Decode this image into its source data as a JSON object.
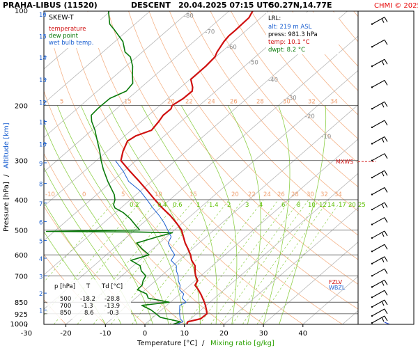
{
  "header": {
    "station": "PRAHA-LIBUS (11520)",
    "mode": "DESCENT",
    "datetime": "20.04.2025 07:15 UTC",
    "coords": "50.27N,14.77E",
    "copyright": "CHMI © 2025"
  },
  "colors": {
    "temperature": "#d01010",
    "dewpoint": "#0a7a0a",
    "wetbulb": "#1a5fd0",
    "isotherm": "#b8b8b8",
    "dry_adiabat": "#f5b48a",
    "moist_adiabat": "#8fd04a",
    "isobar": "#000000",
    "brand_red": "#e60000"
  },
  "legend": {
    "title": "SKEW-T",
    "temperature": "temperature",
    "dewpoint": "dew point",
    "wetbulb": "wet bulb temp."
  },
  "lrl": {
    "title": "LRL:",
    "alt": "alt: 219 m ASL",
    "press": "press: 981.3 hPa",
    "temp": "temp: 10.1 °C",
    "dwpt": "dwpt: 8.2 °C"
  },
  "table": {
    "headers": [
      "p [hPa]",
      "T",
      "Td [°C]"
    ],
    "rows": [
      [
        "500",
        "-18.2",
        "-28.8"
      ],
      [
        "700",
        "-1.3",
        "-13.9"
      ],
      [
        "850",
        "8.6",
        "-0.3"
      ]
    ]
  },
  "markers": {
    "mxws": "MXWS",
    "fzlv": "FZLV",
    "wbzl": "WBZL"
  },
  "axes": {
    "xlabel_temp": "Temperature [°C]",
    "xlabel_sep": "/",
    "xlabel_mix": "Mixing ratio [g/kg]",
    "ylabel_press": "Pressure [hPa]",
    "ylabel_sep": "/",
    "ylabel_alt": "Altitude [km]"
  },
  "chart_data": {
    "type": "line",
    "subtype": "skew-t log-p",
    "x_ticks": [
      -30,
      -20,
      -10,
      0,
      10,
      20,
      30,
      40
    ],
    "pressure_ticks": [
      100,
      200,
      300,
      400,
      500,
      600,
      700,
      850,
      925,
      1000
    ],
    "altitude_ticks_km": [
      1,
      2,
      3,
      4,
      5,
      6,
      7,
      8,
      9,
      10,
      11,
      12,
      13,
      14,
      15,
      16
    ],
    "isotherm_labels": [
      -80,
      -70,
      -60,
      -50,
      -40,
      -30,
      -20,
      -10
    ],
    "mixing_ratio_labels": [
      "0.2",
      "0.4",
      "0.6",
      "1",
      "1.4",
      "2",
      "3",
      "4",
      "6",
      "8",
      "10",
      "12",
      "14",
      "17",
      "20",
      "25"
    ],
    "dry_adiabat_labels_200": [
      "5",
      "15",
      "20",
      "22",
      "24",
      "26",
      "28",
      "30",
      "32",
      "34"
    ],
    "dry_adiabat_labels_400": [
      "-10",
      "0",
      "5",
      "10",
      "15",
      "20",
      "22",
      "24",
      "26",
      "28",
      "30",
      "32",
      "34"
    ],
    "series": [
      {
        "name": "temperature",
        "pressure": [
          1000,
          981,
          960,
          925,
          900,
          870,
          850,
          825,
          800,
          775,
          750,
          725,
          700,
          675,
          650,
          625,
          600,
          575,
          550,
          525,
          500,
          475,
          450,
          425,
          400,
          375,
          350,
          325,
          300,
          280,
          260,
          250,
          240,
          225,
          215,
          205,
          200,
          190,
          180,
          175,
          165,
          160,
          150,
          140,
          135,
          125,
          120,
          115,
          110,
          105,
          100
        ],
        "temp": [
          10.6,
          10.1,
          12.5,
          12.6,
          11.4,
          9.8,
          8.6,
          7.0,
          5.3,
          3.4,
          1.3,
          0.6,
          -1.3,
          -2.9,
          -4.4,
          -6.8,
          -8.7,
          -11.0,
          -13.5,
          -15.8,
          -18.2,
          -21.5,
          -25.2,
          -29.5,
          -33.8,
          -38.2,
          -43.0,
          -48.3,
          -53.8,
          -56.0,
          -57.8,
          -57.2,
          -54.9,
          -55.6,
          -56.3,
          -56.2,
          -56.9,
          -56.1,
          -56.0,
          -57.0,
          -59.8,
          -59.8,
          -59.8,
          -60.2,
          -61.1,
          -62.4,
          -62.8,
          -62.8,
          -62.9,
          -63.0,
          -64.0
        ]
      },
      {
        "name": "dew point",
        "pressure": [
          1000,
          981,
          950,
          925,
          900,
          870,
          850,
          825,
          800,
          775,
          750,
          725,
          700,
          675,
          650,
          625,
          600,
          575,
          550,
          525,
          510,
          507,
          505,
          500,
          480,
          460,
          440,
          425,
          415,
          400,
          385,
          350,
          320,
          300,
          280,
          250,
          240,
          225,
          215,
          205,
          200,
          190,
          180,
          170,
          160,
          150,
          140,
          135,
          125,
          115,
          110,
          100
        ],
        "temp": [
          7.1,
          8.2,
          1.9,
          -0.3,
          -2.6,
          -6.3,
          -0.3,
          -6.8,
          -8.4,
          -12.0,
          -12.1,
          -13.2,
          -13.9,
          -16.5,
          -18.3,
          -22.2,
          -19.2,
          -22.6,
          -25.8,
          -22.3,
          -19.7,
          -28.9,
          -52.0,
          -28.8,
          -31.6,
          -34.5,
          -38.0,
          -41.5,
          -42.8,
          -43.9,
          -45.6,
          -51.0,
          -55.7,
          -58.8,
          -61.9,
          -67.3,
          -69.2,
          -72.6,
          -74.5,
          -74.8,
          -74.8,
          -74.7,
          -72.7,
          -73.3,
          -75.8,
          -78.3,
          -81.6,
          -84.4,
          -88.0,
          -93.4,
          -96.4,
          -100.5
        ]
      },
      {
        "name": "wet bulb temp.",
        "pressure": [
          1000,
          981,
          960,
          925,
          900,
          870,
          850,
          825,
          800,
          775,
          750,
          725,
          700,
          675,
          650,
          625,
          600,
          575,
          550,
          525,
          500,
          475,
          450,
          425,
          400,
          375,
          350,
          325,
          300
        ],
        "temp": [
          8.0,
          8.9,
          7.3,
          5.7,
          4.6,
          3.3,
          4.0,
          1.8,
          1.0,
          -1.3,
          -2.5,
          -4.3,
          -5.7,
          -7.6,
          -9.1,
          -12.0,
          -12.7,
          -15.3,
          -17.8,
          -18.9,
          -21.7,
          -24.6,
          -28.0,
          -31.9,
          -35.8,
          -40.1,
          -45.7,
          -50.0,
          -55.2
        ]
      }
    ]
  }
}
